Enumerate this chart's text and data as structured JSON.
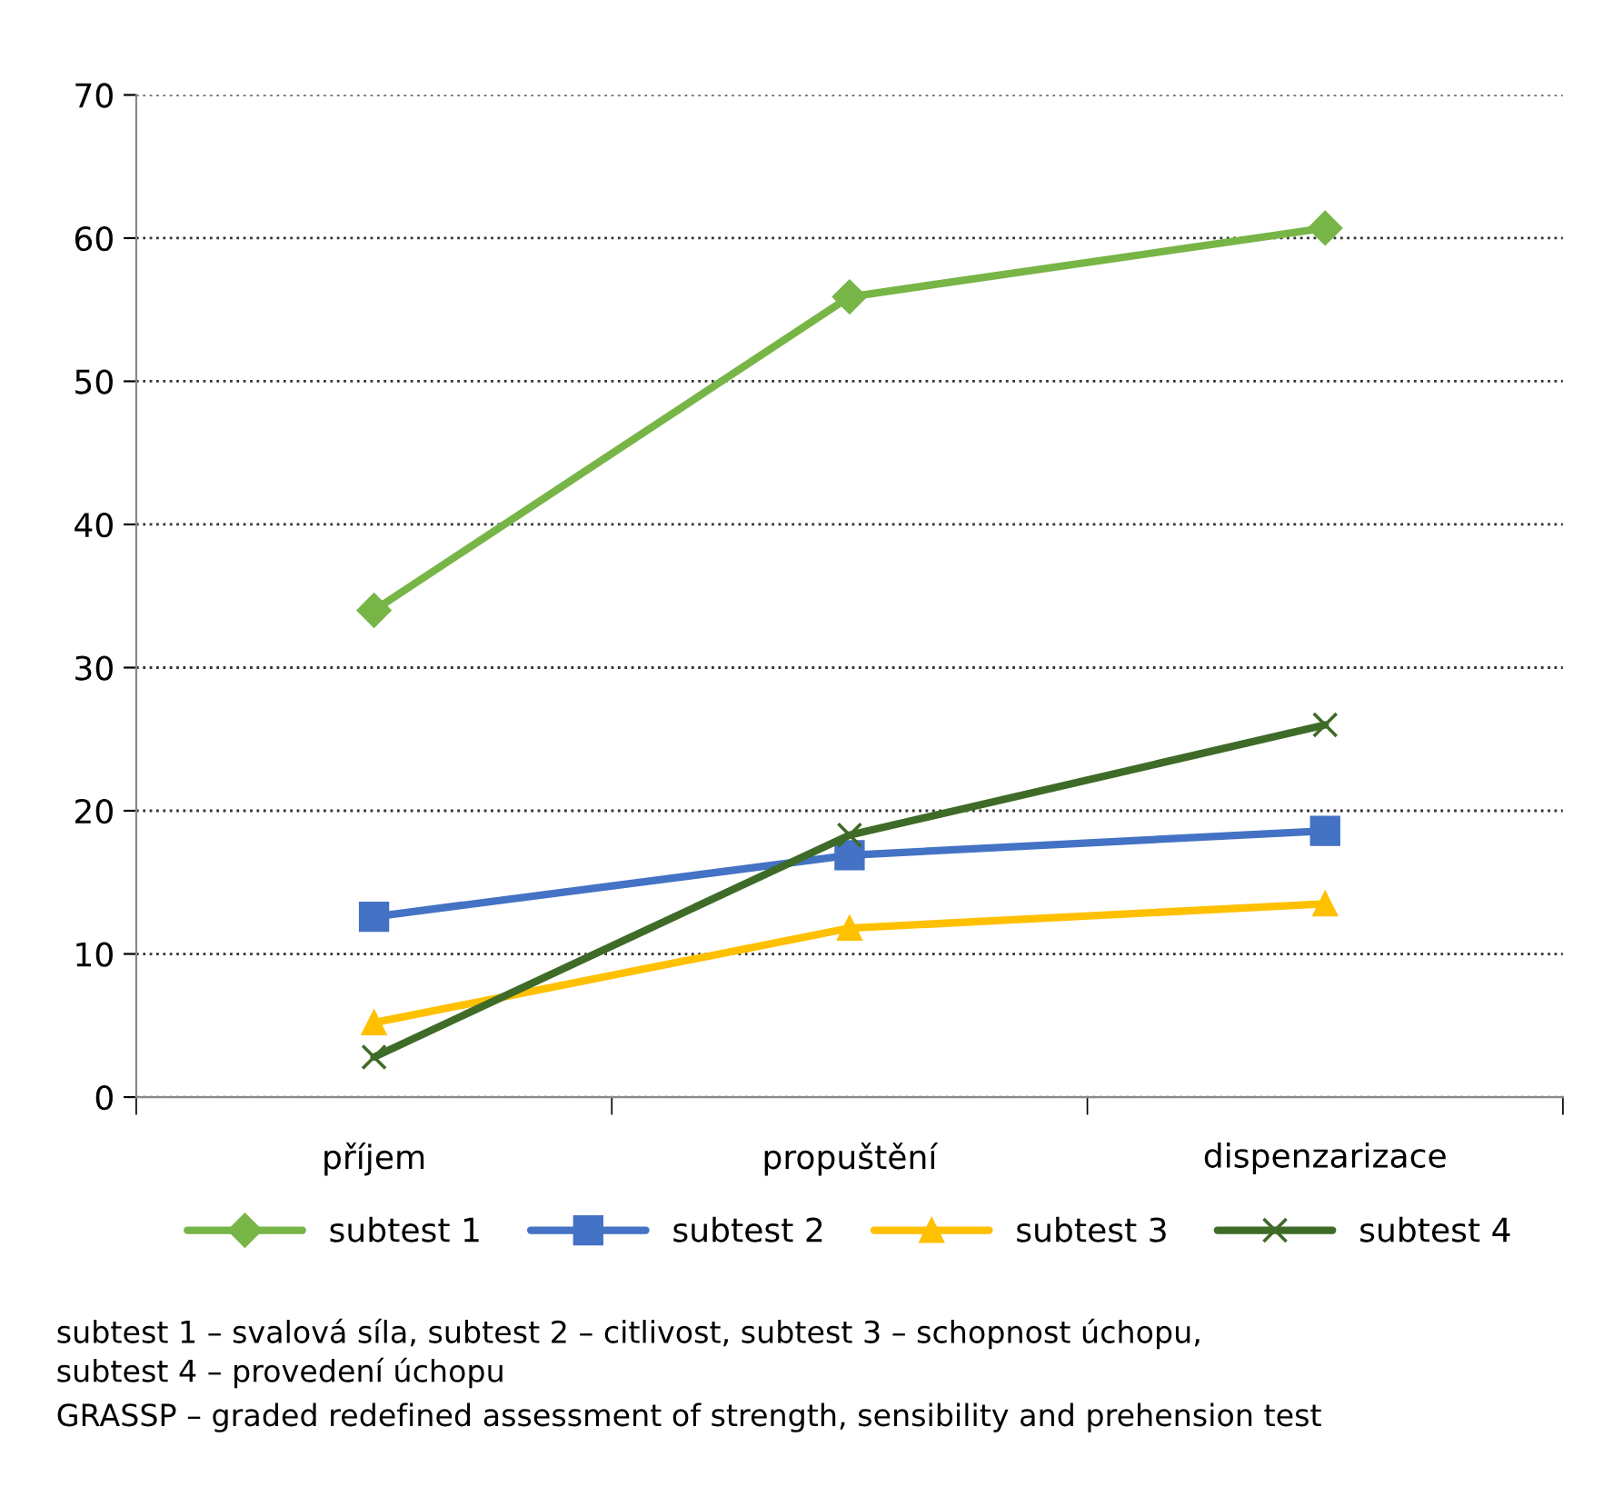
{
  "chart_data": {
    "type": "line",
    "categories": [
      "příjem",
      "propuštění",
      "dispenzarizace"
    ],
    "series": [
      {
        "name": "subtest 1",
        "color": "#77b547",
        "marker": "diamond",
        "values": [
          34.0,
          55.9,
          60.7
        ]
      },
      {
        "name": "subtest 2",
        "color": "#4472c4",
        "marker": "square",
        "values": [
          12.6,
          16.9,
          18.6
        ]
      },
      {
        "name": "subtest 3",
        "color": "#ffc000",
        "marker": "triangle",
        "values": [
          5.2,
          11.8,
          13.5
        ]
      },
      {
        "name": "subtest 4",
        "color": "#3e6b27",
        "marker": "cross",
        "values": [
          2.8,
          18.3,
          26.0
        ]
      }
    ],
    "ylim": [
      0,
      70
    ],
    "yticks": [
      0,
      10,
      20,
      30,
      40,
      50,
      60,
      70
    ],
    "grid": "y",
    "legend": "bottom",
    "line_style": "solid",
    "annotations": [
      "subtest 1 – svalová síla, subtest 2 – citlivost, subtest 3 – schopnost úchopu,\nsubtest 4 – provedení úchopu",
      "GRASSP – graded redefined assessment of strength, sensibility and prehension test"
    ]
  }
}
